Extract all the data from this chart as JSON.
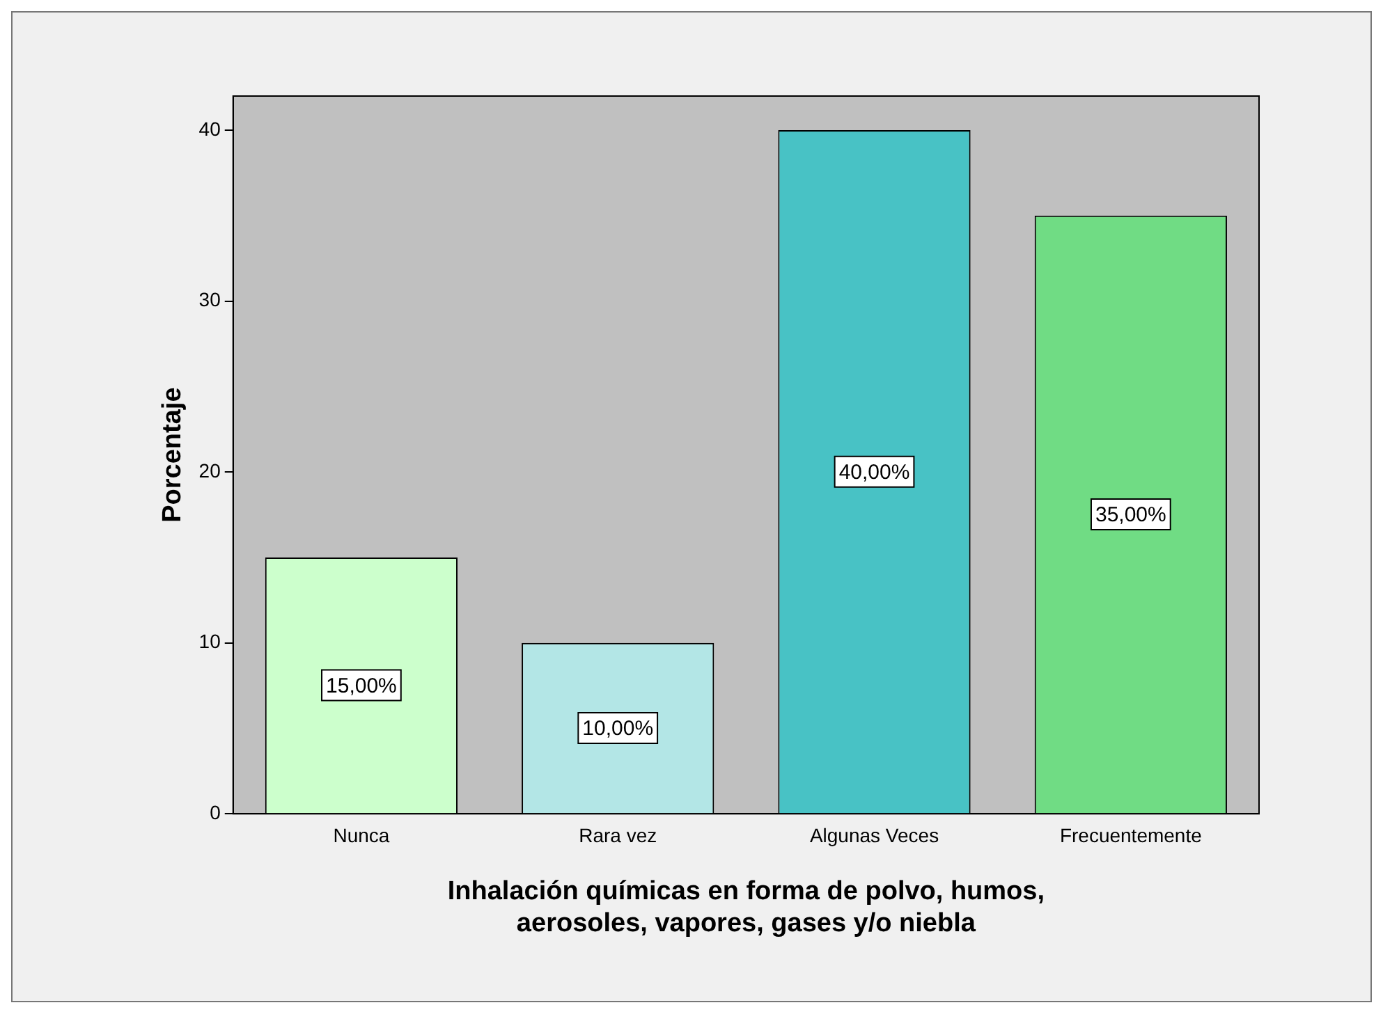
{
  "chart_data": {
    "type": "bar",
    "xlabel": "Inhalación químicas en forma de polvo, humos, aerosoles, vapores, gases y/o niebla",
    "ylabel": "Porcentaje",
    "categories": [
      "Nunca",
      "Rara vez",
      "Algunas Veces",
      "Frecuentemente"
    ],
    "values": [
      15,
      10,
      40,
      35
    ],
    "colors": [
      "#ccffcc",
      "#b3e6e6",
      "#48c2c5",
      "#70dc84"
    ],
    "value_labels": [
      "15,00%",
      "10,00%",
      "40,00%",
      "35,00%"
    ],
    "ylim": [
      0,
      42
    ],
    "yticks": [
      0,
      10,
      20,
      30,
      40
    ],
    "grid": false,
    "legend": false
  }
}
